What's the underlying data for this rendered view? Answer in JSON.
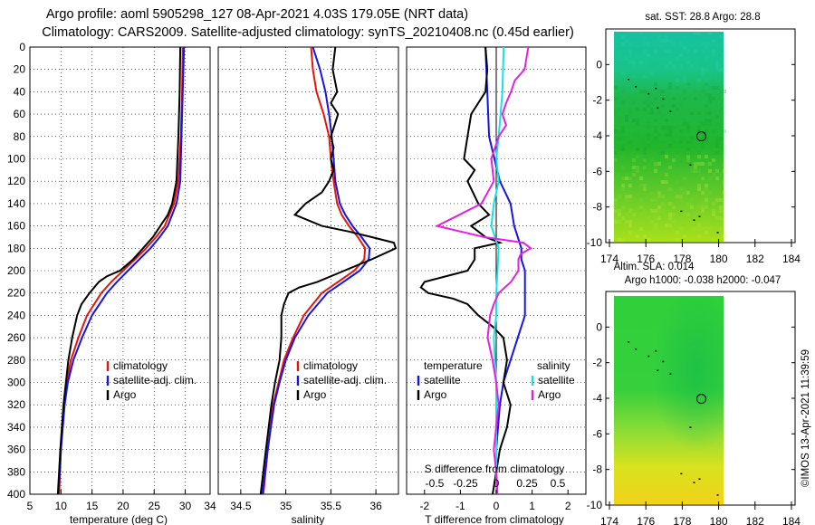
{
  "title_line1": "Argo profile: aoml 5905298_127 08-Apr-2021 4.03S 179.05E (NRT data)",
  "title_line2": "Climatology: CARS2009. Satellite-adjusted climatology: synTS_20210408.nc (0.45d earlier)",
  "credit": "©IMOS 13-Apr-2021 11:39:59",
  "colors": {
    "climatology": "#e8140a",
    "satellite": "#1414e6",
    "argo": "#000000",
    "sal_satellite": "#18e0e8",
    "sal_argo": "#e61ee6"
  },
  "chart_data": [
    {
      "type": "line",
      "name": "temperature",
      "xlabel": "temperature (deg C)",
      "ylabel": "depth",
      "xlim": [
        5,
        34
      ],
      "ylim": [
        0,
        400
      ],
      "x_ticks": [
        5,
        10,
        15,
        20,
        25,
        30,
        34
      ],
      "depth_ticks": [
        0,
        20,
        40,
        60,
        80,
        100,
        120,
        140,
        160,
        180,
        200,
        220,
        240,
        260,
        280,
        300,
        320,
        340,
        360,
        380,
        400
      ],
      "legend": [
        "climatology",
        "satellite-adj. clim.",
        "Argo"
      ],
      "series": [
        {
          "name": "climatology",
          "depth": [
            0,
            40,
            80,
            120,
            140,
            160,
            170,
            180,
            190,
            200,
            210,
            220,
            240,
            260,
            280,
            300,
            320,
            360,
            400
          ],
          "values": [
            29.6,
            29.5,
            29.3,
            28.9,
            28.2,
            26.7,
            25.3,
            23.7,
            21.9,
            20.0,
            18.1,
            16.5,
            14.2,
            12.8,
            11.6,
            10.9,
            10.5,
            10.0,
            9.7
          ]
        },
        {
          "name": "satellite-adj. clim.",
          "depth": [
            0,
            40,
            80,
            120,
            140,
            160,
            170,
            180,
            190,
            200,
            210,
            220,
            240,
            260,
            280,
            300,
            320,
            360,
            400
          ],
          "values": [
            29.8,
            29.6,
            29.4,
            29.2,
            28.6,
            27.2,
            25.9,
            24.4,
            22.6,
            20.8,
            19.0,
            17.4,
            15.0,
            13.4,
            12.0,
            11.1,
            10.6,
            10.0,
            9.6
          ]
        },
        {
          "name": "Argo",
          "depth": [
            0,
            40,
            80,
            120,
            140,
            150,
            160,
            170,
            180,
            190,
            200,
            205,
            210,
            220,
            230,
            240,
            260,
            280,
            300,
            320,
            360,
            400
          ],
          "values": [
            29.2,
            29.1,
            28.9,
            28.6,
            27.9,
            27.2,
            26.0,
            24.8,
            23.2,
            21.6,
            19.5,
            17.4,
            16.1,
            14.6,
            13.3,
            12.6,
            11.8,
            11.2,
            10.8,
            10.4,
            9.9,
            9.5
          ]
        }
      ]
    },
    {
      "type": "line",
      "name": "salinity",
      "xlabel": "salinity",
      "xlim": [
        34.25,
        36.25
      ],
      "ylim": [
        0,
        400
      ],
      "x_ticks": [
        34.5,
        35,
        35.5,
        36
      ],
      "legend": [
        "climatology",
        "satellite-adj. clim.",
        "Argo"
      ],
      "series": [
        {
          "name": "climatology",
          "depth": [
            0,
            20,
            40,
            60,
            80,
            100,
            120,
            140,
            150,
            160,
            170,
            180,
            190,
            200,
            210,
            220,
            240,
            260,
            280,
            300,
            320,
            360,
            400
          ],
          "values": [
            35.28,
            35.3,
            35.34,
            35.42,
            35.48,
            35.5,
            35.53,
            35.57,
            35.62,
            35.7,
            35.8,
            35.88,
            35.87,
            35.76,
            35.58,
            35.4,
            35.2,
            35.08,
            34.98,
            34.92,
            34.86,
            34.8,
            34.75
          ]
        },
        {
          "name": "satellite-adj. clim.",
          "depth": [
            0,
            20,
            40,
            60,
            80,
            100,
            120,
            140,
            150,
            160,
            170,
            180,
            190,
            200,
            210,
            220,
            240,
            260,
            280,
            300,
            320,
            360,
            400
          ],
          "values": [
            35.3,
            35.38,
            35.44,
            35.48,
            35.51,
            35.53,
            35.55,
            35.6,
            35.66,
            35.74,
            35.84,
            35.93,
            35.92,
            35.82,
            35.64,
            35.46,
            35.25,
            35.1,
            35.0,
            34.93,
            34.87,
            34.8,
            34.74
          ]
        },
        {
          "name": "Argo",
          "depth": [
            0,
            20,
            40,
            50,
            60,
            70,
            80,
            90,
            100,
            110,
            120,
            130,
            140,
            150,
            160,
            165,
            170,
            175,
            180,
            190,
            200,
            210,
            215,
            220,
            230,
            240,
            260,
            280,
            300,
            320,
            360,
            400
          ],
          "values": [
            35.55,
            35.52,
            35.57,
            35.5,
            35.58,
            35.54,
            35.5,
            35.53,
            35.5,
            35.53,
            35.48,
            35.4,
            35.22,
            35.1,
            35.4,
            35.7,
            35.95,
            36.2,
            36.22,
            35.95,
            35.65,
            35.35,
            35.15,
            35.03,
            34.98,
            34.95,
            34.95,
            34.93,
            34.88,
            34.84,
            34.78,
            34.72
          ]
        }
      ]
    },
    {
      "type": "line",
      "name": "difference",
      "xlabel": "T difference from climatology",
      "top_label": "S difference from climatology",
      "xlim": [
        -2.5,
        2.5
      ],
      "ylim": [
        0,
        400
      ],
      "x_ticks": [
        -2,
        -1,
        0,
        1,
        2
      ],
      "top_ticks": [
        -0.5,
        -0.25,
        0,
        0.25,
        0.5
      ],
      "temperature_legend": [
        "temperature",
        "satellite",
        "Argo"
      ],
      "salinity_legend": [
        "salinity",
        "satellite",
        "Argo"
      ],
      "series": [
        {
          "name": "T satellite",
          "depth": [
            0,
            40,
            80,
            120,
            140,
            160,
            170,
            180,
            190,
            200,
            210,
            220,
            240,
            260,
            280,
            300,
            320,
            360,
            400
          ],
          "values": [
            -0.3,
            -0.25,
            -0.2,
            0.1,
            0.4,
            0.5,
            0.6,
            0.7,
            0.7,
            0.8,
            0.8,
            0.8,
            0.8,
            0.6,
            0.4,
            0.2,
            0.1,
            0.0,
            0.0
          ]
        },
        {
          "name": "T Argo",
          "depth": [
            0,
            20,
            40,
            60,
            80,
            100,
            110,
            120,
            140,
            150,
            160,
            170,
            175,
            180,
            190,
            200,
            210,
            215,
            220,
            225,
            230,
            240,
            250,
            260,
            280,
            300,
            320,
            340,
            360,
            380,
            400
          ],
          "values": [
            -0.3,
            -0.25,
            -0.3,
            -0.7,
            -0.8,
            -0.9,
            -0.6,
            -0.8,
            -0.5,
            -0.2,
            -0.7,
            -0.3,
            0.1,
            -0.6,
            -0.6,
            -0.8,
            -2.0,
            -2.1,
            -1.9,
            -1.2,
            -0.8,
            -0.5,
            -0.1,
            0.2,
            0.3,
            0.2,
            0.4,
            0.3,
            0.1,
            0.0,
            -0.1
          ]
        },
        {
          "name": "S satellite",
          "depth": [
            0,
            40,
            80,
            100,
            120,
            140,
            160,
            180,
            200,
            220,
            240,
            260,
            280,
            300,
            320,
            360,
            400
          ],
          "values": [
            0.06,
            0.05,
            0.02,
            0.0,
            0.02,
            -0.02,
            -0.04,
            0.02,
            0.01,
            0.0,
            0.0,
            -0.02,
            -0.01,
            0.0,
            0.0,
            0.0,
            0.0
          ]
        },
        {
          "name": "S Argo",
          "depth": [
            0,
            20,
            30,
            40,
            50,
            60,
            70,
            80,
            100,
            120,
            140,
            150,
            160,
            170,
            175,
            180,
            185,
            190,
            200,
            210,
            220,
            230,
            240,
            260,
            280,
            300,
            320,
            340,
            360,
            380,
            400
          ],
          "values": [
            0.26,
            0.23,
            0.15,
            0.12,
            0.08,
            0.05,
            0.08,
            0.02,
            -0.04,
            -0.02,
            -0.12,
            -0.3,
            -0.48,
            -0.1,
            0.22,
            0.28,
            0.2,
            0.18,
            0.18,
            0.12,
            0.02,
            -0.02,
            -0.05,
            -0.07,
            -0.03,
            0.0,
            0.02,
            0.0,
            -0.02,
            0.0,
            0.01
          ]
        }
      ]
    },
    {
      "type": "heatmap",
      "name": "sst_map",
      "title": "sat. SST: 28.8 Argo: 28.8",
      "x_ticks": [
        174,
        176,
        178,
        180,
        182,
        184
      ],
      "y_ticks": [
        0,
        -2,
        -4,
        -6,
        -8,
        -10
      ],
      "xlim": [
        173.8,
        184.2
      ],
      "ylim": [
        -10,
        2
      ],
      "argo_position": [
        179.05,
        -4.03
      ]
    },
    {
      "type": "heatmap",
      "name": "sla_map",
      "title_line1": "Altim. SLA: 0.014",
      "title_line2": "Argo h1000: -0.038 h2000: -0.047",
      "x_ticks": [
        174,
        176,
        178,
        180,
        182,
        184
      ],
      "y_ticks": [
        0,
        -2,
        -4,
        -6,
        -8,
        -10
      ],
      "xlim": [
        173.8,
        184.2
      ],
      "ylim": [
        -10,
        2
      ],
      "argo_position": [
        179.05,
        -4.03
      ]
    }
  ]
}
